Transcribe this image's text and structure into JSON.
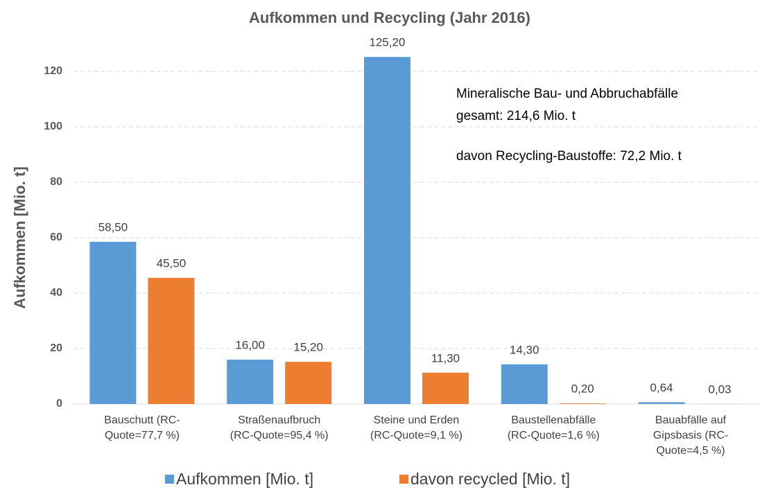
{
  "chart_data": {
    "type": "bar",
    "title": "Aufkommen und Recycling (Jahr 2016)",
    "ylabel": "Aufkommen [Mio. t]",
    "categories": [
      [
        "Bauschutt (RC-",
        "Quote=77,7 %)"
      ],
      [
        "Straßenaufbruch",
        "(RC-Quote=95,4 %)"
      ],
      [
        "Steine und Erden",
        "(RC-Quote=9,1 %)"
      ],
      [
        "Baustellenabfälle",
        "(RC-Quote=1,6 %)"
      ],
      [
        "Bauabfälle auf",
        "Gipsbasis (RC-",
        "Quote=4,5 %)"
      ]
    ],
    "series": [
      {
        "name": "Aufkommen [Mio. t]",
        "color": "#5b9bd5",
        "values": [
          58.5,
          16,
          125.2,
          14.3,
          0.64
        ],
        "value_labels": [
          "58,50",
          "16,00",
          "125,20",
          "14,30",
          "0,64"
        ]
      },
      {
        "name": "davon recycled [Mio. t]",
        "color": "#ed7d31",
        "values": [
          45.5,
          15.2,
          11.3,
          0.2,
          0.03
        ],
        "value_labels": [
          "45,50",
          "15,20",
          "11,30",
          "0,20",
          "0,03"
        ]
      }
    ],
    "ylim": [
      0,
      120
    ],
    "yticks": [
      0,
      20,
      40,
      60,
      80,
      100,
      120
    ],
    "grid": true,
    "legend": "bottom",
    "annotations": [
      "Mineralische Bau- und Abbruchabfälle",
      "gesamt: 214,6 Mio. t",
      "davon Recycling-Baustoffe: 72,2 Mio. t"
    ]
  }
}
